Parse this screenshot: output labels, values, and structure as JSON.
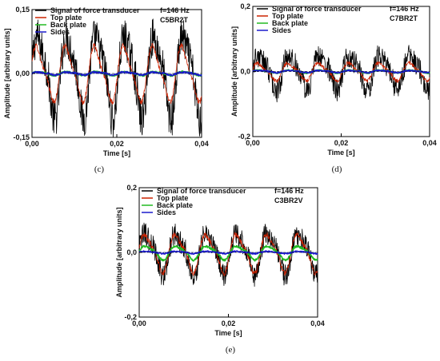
{
  "chart_data": [
    {
      "type": "line",
      "caption": "(c)",
      "freq_label": "f=146 Hz",
      "sample_label": "C5BR2T",
      "xlabel": "Time [s]",
      "ylabel": "Amplitude [arbitrary units]",
      "xlim": [
        0,
        0.04
      ],
      "ylim": [
        -0.15,
        0.15
      ],
      "xticks": [
        "0,00",
        "0,02",
        "0,04"
      ],
      "yticks": [
        "0,15",
        "0,00",
        "-0,15"
      ],
      "legend_position": "top-left",
      "grid": false,
      "series": [
        {
          "name": "Signal of force transducer",
          "color": "#000000",
          "amplitude": 0.09,
          "noise": 0.045,
          "phase": 0.0
        },
        {
          "name": "Top plate",
          "color": "#cc2200",
          "amplitude": 0.06,
          "noise": 0.006,
          "phase": 0.3
        },
        {
          "name": "Back plate",
          "color": "#22bb22",
          "amplitude": 0.004,
          "noise": 0.002,
          "phase": 0.0
        },
        {
          "name": "Sides",
          "color": "#1a1acc",
          "amplitude": 0.003,
          "noise": 0.002,
          "phase": 0.0
        }
      ]
    },
    {
      "type": "line",
      "caption": "(d)",
      "freq_label": "f=146 Hz",
      "sample_label": "C7BR2T",
      "xlabel": "Time [s]",
      "ylabel": "Amplitude [arbitrary units]",
      "xlim": [
        0,
        0.04
      ],
      "ylim": [
        -0.2,
        0.2
      ],
      "xticks": [
        "0,00",
        "0,02",
        "0,04"
      ],
      "yticks": [
        "0,2",
        "0,0",
        "-0,2"
      ],
      "legend_position": "top-left",
      "grid": false,
      "series": [
        {
          "name": "Signal of force transducer",
          "color": "#000000",
          "amplitude": 0.05,
          "noise": 0.035,
          "phase": 0.0
        },
        {
          "name": "Top plate",
          "color": "#cc2200",
          "amplitude": 0.025,
          "noise": 0.006,
          "phase": 0.2
        },
        {
          "name": "Back plate",
          "color": "#22bb22",
          "amplitude": 0.004,
          "noise": 0.002,
          "phase": 0.0
        },
        {
          "name": "Sides",
          "color": "#1a1acc",
          "amplitude": 0.003,
          "noise": 0.002,
          "phase": 0.0
        }
      ]
    },
    {
      "type": "line",
      "caption": "(e)",
      "freq_label": "f=146 Hz",
      "sample_label": "C3BR2V",
      "xlabel": "Time [s]",
      "ylabel": "Amplitude [arbitrary units]",
      "xlim": [
        0,
        0.04
      ],
      "ylim": [
        -0.2,
        0.2
      ],
      "xticks": [
        "0,00",
        "0,02",
        "0,04"
      ],
      "yticks": [
        "0,2",
        "0,0",
        "-0,2"
      ],
      "legend_position": "top-left",
      "grid": false,
      "series": [
        {
          "name": "Signal of force transducer",
          "color": "#000000",
          "amplitude": 0.06,
          "noise": 0.035,
          "phase": 0.0
        },
        {
          "name": "Top plate",
          "color": "#cc2200",
          "amplitude": 0.055,
          "noise": 0.008,
          "phase": 0.1
        },
        {
          "name": "Back plate",
          "color": "#22bb22",
          "amplitude": 0.02,
          "noise": 0.003,
          "phase": 0.0
        },
        {
          "name": "Sides",
          "color": "#1a1acc",
          "amplitude": 0.003,
          "noise": 0.002,
          "phase": 0.0
        }
      ]
    }
  ]
}
